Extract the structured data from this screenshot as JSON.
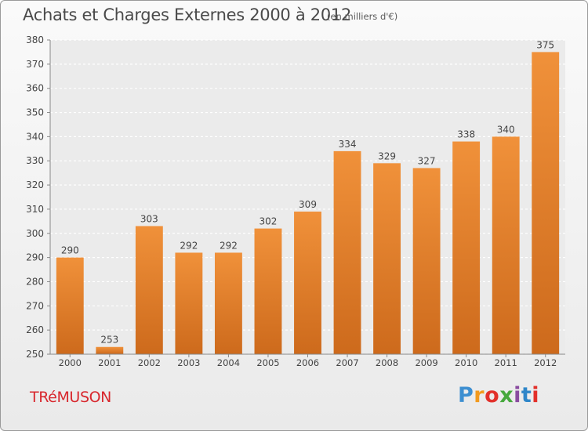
{
  "header": {
    "title": "Achats et Charges Externes 2000 à 2012",
    "subtitle": "(en milliers d'€)"
  },
  "footer": {
    "commune": "TRéMUSON",
    "logo": {
      "letters": [
        "P",
        "r",
        "o",
        "x",
        "i",
        "t",
        "i"
      ],
      "colors": [
        "#3d8fd1",
        "#f29a1e",
        "#e2302a",
        "#46a83c",
        "#8a4ba0",
        "#2e86c9",
        "#e2302a"
      ]
    }
  },
  "chart_data": {
    "type": "bar",
    "categories": [
      "2000",
      "2001",
      "2002",
      "2003",
      "2004",
      "2005",
      "2006",
      "2007",
      "2008",
      "2009",
      "2010",
      "2011",
      "2012"
    ],
    "values": [
      290,
      253,
      303,
      292,
      292,
      302,
      309,
      334,
      329,
      327,
      338,
      340,
      375
    ],
    "ylim": [
      250,
      380
    ],
    "yticks": [
      250,
      260,
      270,
      280,
      290,
      300,
      310,
      320,
      330,
      340,
      350,
      360,
      370,
      380
    ],
    "grid": true,
    "bar_color": "#f0913a",
    "bar_color_dark": "#cd6a1c"
  }
}
